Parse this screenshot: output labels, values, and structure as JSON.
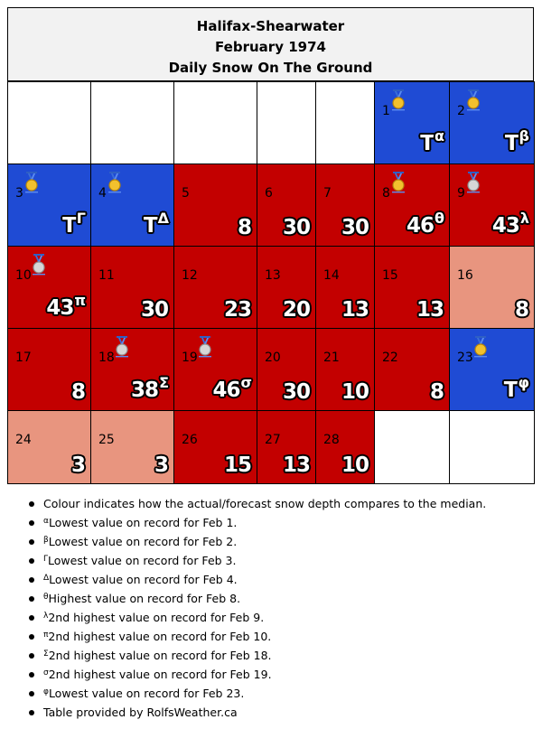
{
  "title": {
    "station": "Halifax-Shearwater",
    "month": "February 1974",
    "subtitle": "Daily Snow On The Ground"
  },
  "colors": {
    "below_median": "#1f4bd4",
    "above_median": "#c30000",
    "slightly_above": "#e8957f",
    "empty": "#ffffff",
    "header_bg": "#f2f2f2"
  },
  "days": [
    {
      "day": "1",
      "value": "T",
      "mark": "α",
      "cat": "below",
      "medal": "gold"
    },
    {
      "day": "2",
      "value": "T",
      "mark": "β",
      "cat": "below",
      "medal": "gold"
    },
    {
      "day": "3",
      "value": "T",
      "mark": "Γ",
      "cat": "below",
      "medal": "gold"
    },
    {
      "day": "4",
      "value": "T",
      "mark": "Δ",
      "cat": "below",
      "medal": "gold"
    },
    {
      "day": "5",
      "value": "8",
      "mark": "",
      "cat": "above",
      "medal": ""
    },
    {
      "day": "6",
      "value": "30",
      "mark": "",
      "cat": "above",
      "medal": ""
    },
    {
      "day": "7",
      "value": "30",
      "mark": "",
      "cat": "above",
      "medal": ""
    },
    {
      "day": "8",
      "value": "46",
      "mark": "θ",
      "cat": "above",
      "medal": "gold"
    },
    {
      "day": "9",
      "value": "43",
      "mark": "λ",
      "cat": "above",
      "medal": "silver"
    },
    {
      "day": "10",
      "value": "43",
      "mark": "π",
      "cat": "above",
      "medal": "silver"
    },
    {
      "day": "11",
      "value": "30",
      "mark": "",
      "cat": "above",
      "medal": ""
    },
    {
      "day": "12",
      "value": "23",
      "mark": "",
      "cat": "above",
      "medal": ""
    },
    {
      "day": "13",
      "value": "20",
      "mark": "",
      "cat": "above",
      "medal": ""
    },
    {
      "day": "14",
      "value": "13",
      "mark": "",
      "cat": "above",
      "medal": ""
    },
    {
      "day": "15",
      "value": "13",
      "mark": "",
      "cat": "above",
      "medal": ""
    },
    {
      "day": "16",
      "value": "8",
      "mark": "",
      "cat": "slight",
      "medal": ""
    },
    {
      "day": "17",
      "value": "8",
      "mark": "",
      "cat": "above",
      "medal": ""
    },
    {
      "day": "18",
      "value": "38",
      "mark": "Σ",
      "cat": "above",
      "medal": "silver"
    },
    {
      "day": "19",
      "value": "46",
      "mark": "σ",
      "cat": "above",
      "medal": "silver"
    },
    {
      "day": "20",
      "value": "30",
      "mark": "",
      "cat": "above",
      "medal": ""
    },
    {
      "day": "21",
      "value": "10",
      "mark": "",
      "cat": "above",
      "medal": ""
    },
    {
      "day": "22",
      "value": "8",
      "mark": "",
      "cat": "above",
      "medal": ""
    },
    {
      "day": "23",
      "value": "T",
      "mark": "φ",
      "cat": "below",
      "medal": "gold"
    },
    {
      "day": "24",
      "value": "3",
      "mark": "",
      "cat": "slight",
      "medal": ""
    },
    {
      "day": "25",
      "value": "3",
      "mark": "",
      "cat": "slight",
      "medal": ""
    },
    {
      "day": "26",
      "value": "15",
      "mark": "",
      "cat": "above",
      "medal": ""
    },
    {
      "day": "27",
      "value": "13",
      "mark": "",
      "cat": "above",
      "medal": ""
    },
    {
      "day": "28",
      "value": "10",
      "mark": "",
      "cat": "above",
      "medal": ""
    }
  ],
  "notes": [
    {
      "sup": "",
      "text": "Colour indicates how the actual/forecast snow depth compares to the median."
    },
    {
      "sup": "α",
      "text": "Lowest value on record for Feb 1."
    },
    {
      "sup": "β",
      "text": "Lowest value on record for Feb 2."
    },
    {
      "sup": "Γ",
      "text": "Lowest value on record for Feb 3."
    },
    {
      "sup": "Δ",
      "text": "Lowest value on record for Feb 4."
    },
    {
      "sup": "θ",
      "text": "Highest value on record for Feb 8."
    },
    {
      "sup": "λ",
      "text": "2nd highest value on record for Feb 9."
    },
    {
      "sup": "π",
      "text": "2nd highest value on record for Feb 10."
    },
    {
      "sup": "Σ",
      "text": "2nd highest value on record for Feb 18."
    },
    {
      "sup": "σ",
      "text": "2nd highest value on record for Feb 19."
    },
    {
      "sup": "φ",
      "text": "Lowest value on record for Feb 23."
    },
    {
      "sup": "",
      "text": "Table provided by RolfsWeather.ca"
    }
  ]
}
